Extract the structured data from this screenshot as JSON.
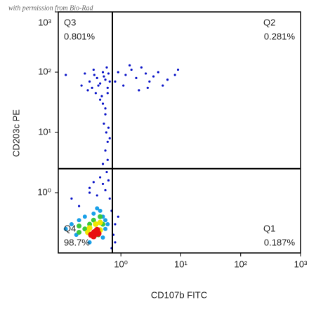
{
  "chart_data": {
    "type": "scatter",
    "watermark": "with permission from Bio-Rad",
    "x_label": "CD107b FITC",
    "y_label": "CD203c PE",
    "xlog": true,
    "ylog": true,
    "xlim": [
      0.09,
      1000
    ],
    "ylim": [
      0.1,
      1000
    ],
    "xticks": [
      {
        "value": 1,
        "label": "10⁰"
      },
      {
        "value": 10,
        "label": "10¹"
      },
      {
        "value": 100,
        "label": "10²"
      },
      {
        "value": 1000,
        "label": "10³"
      }
    ],
    "yticks": [
      {
        "value": 1,
        "label": "10⁰"
      },
      {
        "value": 10,
        "label": "10¹"
      },
      {
        "value": 100,
        "label": "10²"
      },
      {
        "value": 1000,
        "label": "10³"
      }
    ],
    "gate_x": 0.72,
    "gate_y": 2.5,
    "quadrants": [
      {
        "label": "Q3",
        "percent": "0.801%",
        "corner": "top-left"
      },
      {
        "label": "Q2",
        "percent": "0.281%",
        "corner": "top-right"
      },
      {
        "label": "Q4",
        "percent": "98.7%",
        "corner": "bottom-left"
      },
      {
        "label": "Q1",
        "percent": "0.187%",
        "corner": "bottom-right"
      }
    ],
    "series": [
      {
        "color": "#0a14c8",
        "size": 1.6,
        "x": [
          0.12,
          0.25,
          0.3,
          0.35,
          0.4,
          0.45,
          0.5,
          0.55,
          0.6,
          0.38,
          0.42,
          0.48,
          0.52,
          0.58,
          0.33,
          0.28,
          0.45,
          0.5,
          0.55,
          0.6,
          0.65,
          0.22,
          0.36,
          0.62,
          0.9,
          1.2,
          1.5,
          1.8,
          2.2,
          2.6,
          3,
          3.5,
          4.2,
          5,
          6,
          8,
          1.1,
          2,
          2.8,
          0.8,
          9,
          1.4,
          0.55,
          0.52,
          0.57,
          0.6,
          0.55,
          0.6,
          0.5,
          0.65,
          0.62,
          0.58,
          0.45,
          0.35,
          0.3,
          0.5,
          0.62,
          0.7,
          0.8,
          0.75,
          0.9,
          0.65,
          0.4,
          0.2,
          0.15,
          0.3,
          0.55,
          0.8,
          0.7
        ],
        "y": [
          90,
          95,
          70,
          110,
          80,
          65,
          100,
          75,
          55,
          45,
          60,
          40,
          85,
          120,
          55,
          50,
          35,
          30,
          25,
          45,
          70,
          60,
          90,
          95,
          100,
          90,
          110,
          80,
          120,
          95,
          70,
          85,
          100,
          60,
          75,
          90,
          60,
          50,
          55,
          70,
          110,
          130,
          20,
          14,
          10,
          7,
          5,
          3.5,
          3,
          8,
          12,
          2.2,
          1.8,
          1.5,
          1.2,
          1.4,
          1.6,
          0.5,
          0.3,
          0.2,
          0.4,
          0.8,
          0.9,
          0.6,
          0.8,
          1,
          1.1,
          0.15,
          0.12
        ]
      },
      {
        "color": "#1aa0e8",
        "size": 3,
        "x": [
          0.15,
          0.2,
          0.25,
          0.35,
          0.45,
          0.5,
          0.55,
          0.6,
          0.18,
          0.3,
          0.5,
          0.55,
          0.12,
          0.4
        ],
        "y": [
          0.3,
          0.35,
          0.4,
          0.45,
          0.5,
          0.4,
          0.35,
          0.3,
          0.2,
          0.15,
          0.18,
          0.25,
          0.25,
          0.55
        ]
      },
      {
        "color": "#3cc83c",
        "size": 3.5,
        "x": [
          0.2,
          0.25,
          0.3,
          0.35,
          0.45,
          0.5,
          0.2,
          0.42
        ],
        "y": [
          0.28,
          0.25,
          0.3,
          0.35,
          0.4,
          0.3,
          0.22,
          0.2
        ]
      },
      {
        "color": "#f0e600",
        "size": 4,
        "x": [
          0.28,
          0.3,
          0.38,
          0.45,
          0.45
        ],
        "y": [
          0.22,
          0.26,
          0.3,
          0.32,
          0.24
        ]
      },
      {
        "color": "#e81010",
        "size": 4.5,
        "x": [
          0.32,
          0.36,
          0.4,
          0.42,
          0.35,
          0.38
        ],
        "y": [
          0.2,
          0.22,
          0.24,
          0.21,
          0.19,
          0.21
        ]
      }
    ]
  }
}
